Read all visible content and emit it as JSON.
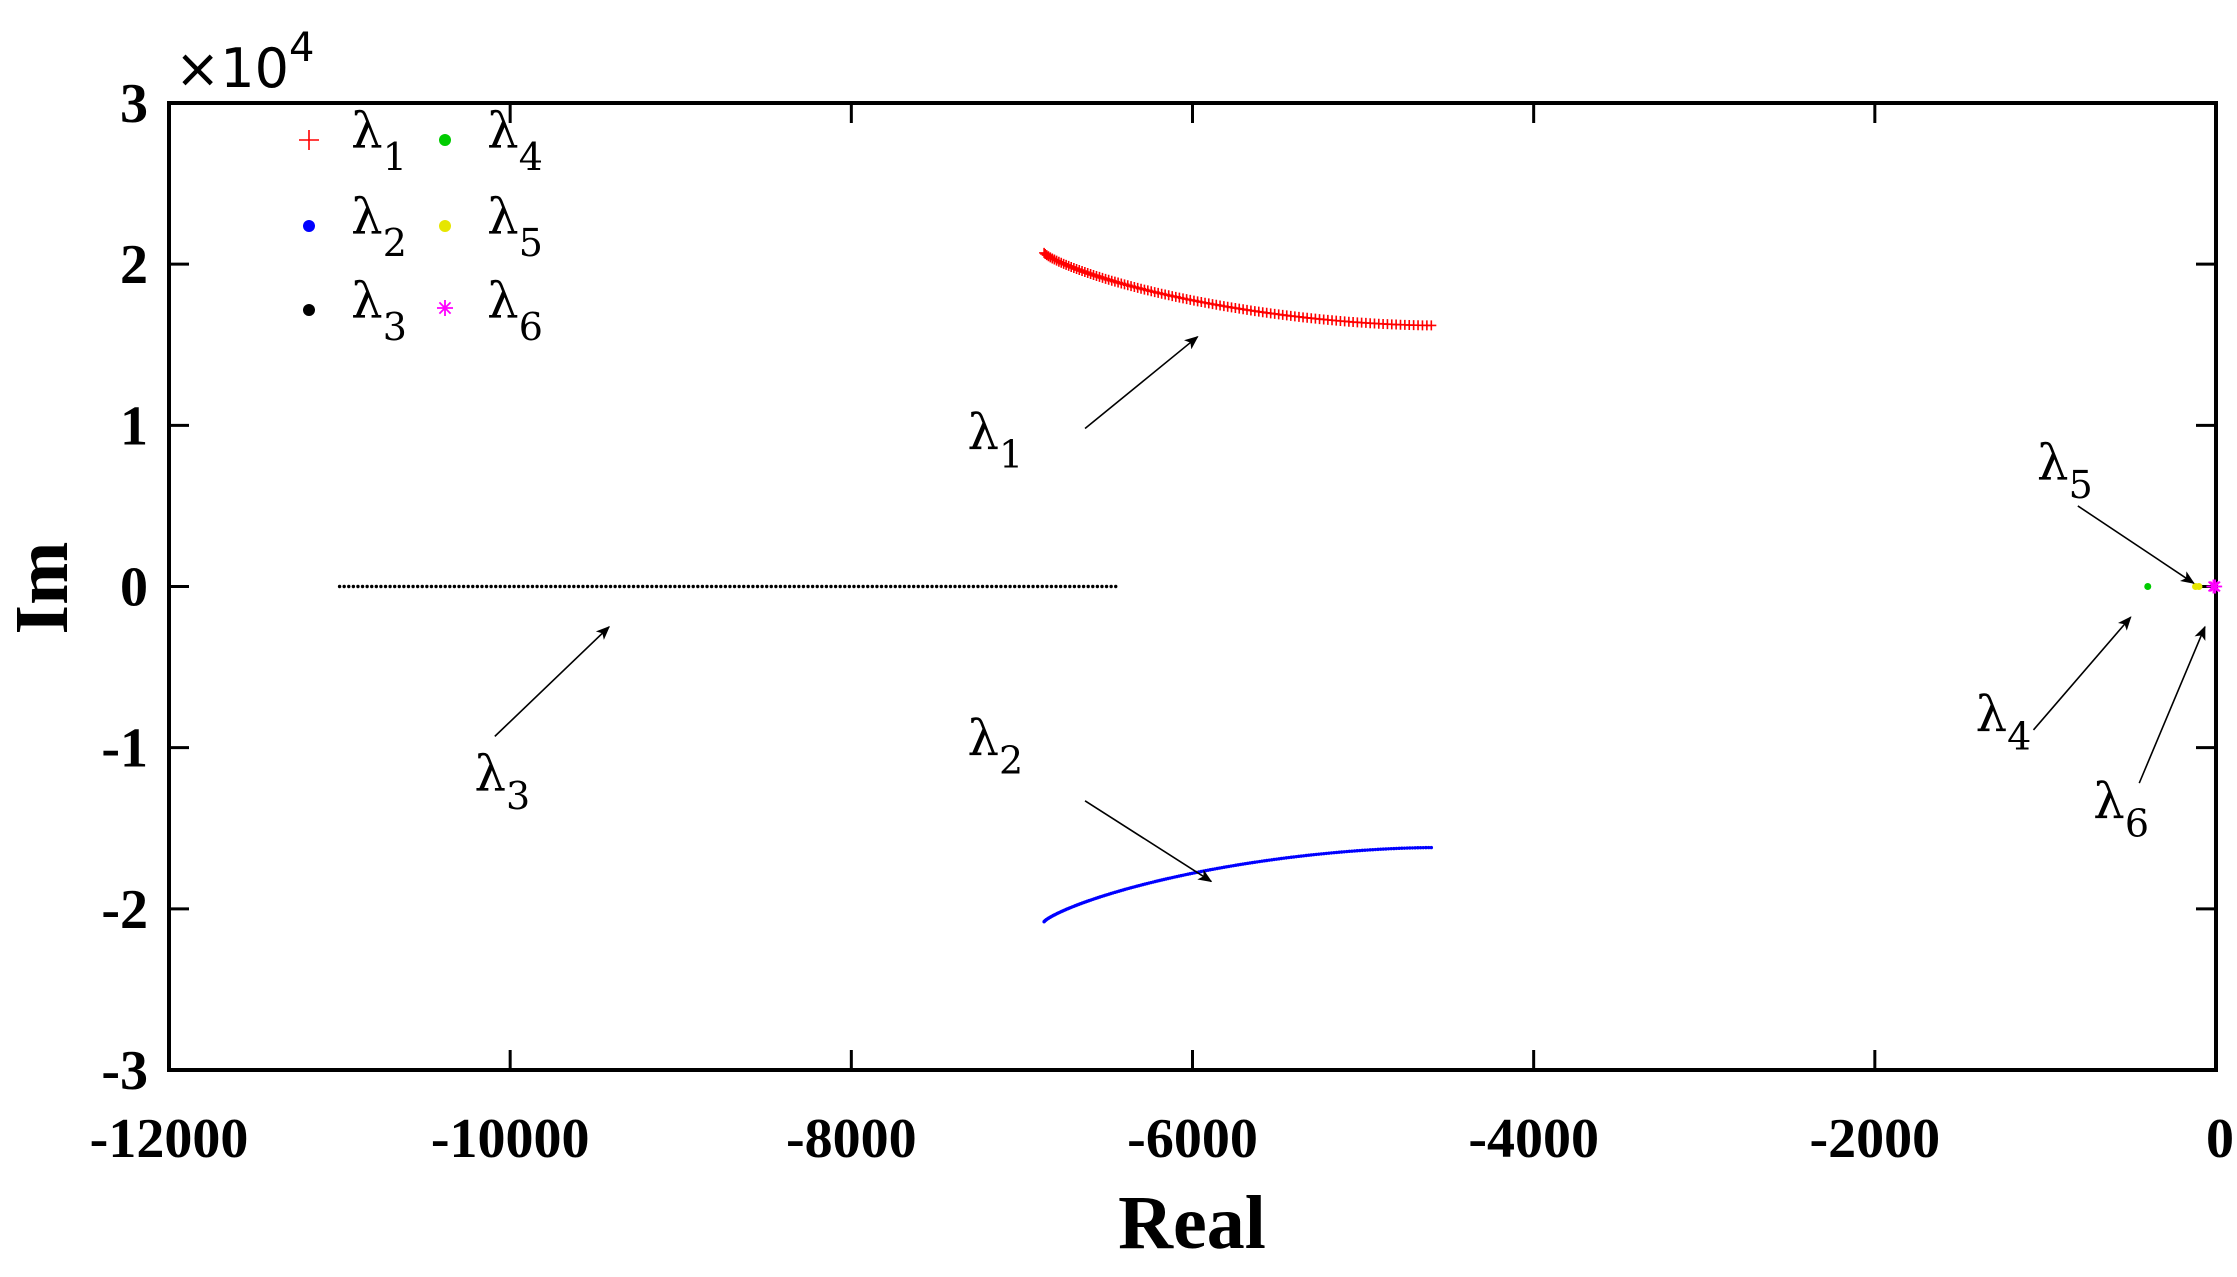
{
  "chart_data": {
    "type": "scatter",
    "xlabel": "Real",
    "ylabel": "Im",
    "xlim": [
      -12000,
      0
    ],
    "ylim": [
      -3,
      3
    ],
    "y_scale_factor_label": "×10",
    "y_scale_factor_exponent": "4",
    "xticks": [
      -12000,
      -10000,
      -8000,
      -6000,
      -4000,
      -2000,
      0
    ],
    "xtick_labels": [
      "-12000",
      "-10000",
      "-8000",
      "-6000",
      "-4000",
      "-2000",
      "0"
    ],
    "yticks": [
      -3,
      -2,
      -1,
      0,
      1,
      2,
      3
    ],
    "ytick_labels": [
      "-3",
      "-2",
      "-1",
      "0",
      "1",
      "2",
      "3"
    ],
    "grid": false,
    "legend_position": "top-left",
    "series": [
      {
        "label": "λ",
        "sub": "1",
        "color": "#ff0000",
        "marker": "plus",
        "x_start": -6870,
        "x_end": -4600,
        "y_start": 2.07,
        "y_end": 1.62,
        "count": 110,
        "curvature": 0.25
      },
      {
        "label": "λ",
        "sub": "2",
        "color": "#0000ff",
        "marker": "dot",
        "x_start": -6870,
        "x_end": -4600,
        "y_start": -2.08,
        "y_end": -1.62,
        "count": 180,
        "curvature": 0.25
      },
      {
        "label": "λ",
        "sub": "3",
        "color": "#000000",
        "marker": "dot",
        "x_start": -11000,
        "x_end": -6450,
        "y_start": 0,
        "y_end": 0,
        "count": 170,
        "curvature": 0
      },
      {
        "label": "λ",
        "sub": "4",
        "color": "#00cc00",
        "marker": "dot",
        "points": [
          [
            -400,
            0
          ]
        ]
      },
      {
        "label": "λ",
        "sub": "5",
        "color": "#e6e600",
        "marker": "dot",
        "points": [
          [
            -120,
            0
          ],
          [
            -100,
            0
          ]
        ]
      },
      {
        "label": "λ",
        "sub": "6",
        "color": "#ff00ff",
        "marker": "star",
        "points": [
          [
            -15,
            0
          ],
          [
            -5,
            0
          ]
        ]
      }
    ],
    "annotations": [
      {
        "target": "λ1",
        "text": "λ",
        "sub": "1",
        "label_at": [
          -7320,
          0.85
        ],
        "arrow_from": [
          -6630,
          0.98
        ],
        "arrow_to": [
          -5970,
          1.55
        ]
      },
      {
        "target": "λ2",
        "text": "λ",
        "sub": "2",
        "label_at": [
          -7320,
          -1.05
        ],
        "arrow_from": [
          -6630,
          -1.33
        ],
        "arrow_to": [
          -5890,
          -1.83
        ]
      },
      {
        "target": "λ3",
        "text": "λ",
        "sub": "3",
        "label_at": [
          -10210,
          -1.27
        ],
        "arrow_from": [
          -10090,
          -0.93
        ],
        "arrow_to": [
          -9420,
          -0.25
        ]
      },
      {
        "target": "λ4",
        "text": "λ",
        "sub": "4",
        "label_at": [
          -1410,
          -0.9
        ],
        "arrow_from": [
          -1070,
          -0.89
        ],
        "arrow_to": [
          -500,
          -0.19
        ]
      },
      {
        "target": "λ5",
        "text": "λ",
        "sub": "5",
        "label_at": [
          -1050,
          0.66
        ],
        "arrow_from": [
          -810,
          0.5
        ],
        "arrow_to": [
          -130,
          0.02
        ]
      },
      {
        "target": "λ6",
        "text": "λ",
        "sub": "6",
        "label_at": [
          -720,
          -1.44
        ],
        "arrow_from": [
          -450,
          -1.22
        ],
        "arrow_to": [
          -65,
          -0.25
        ]
      }
    ]
  }
}
